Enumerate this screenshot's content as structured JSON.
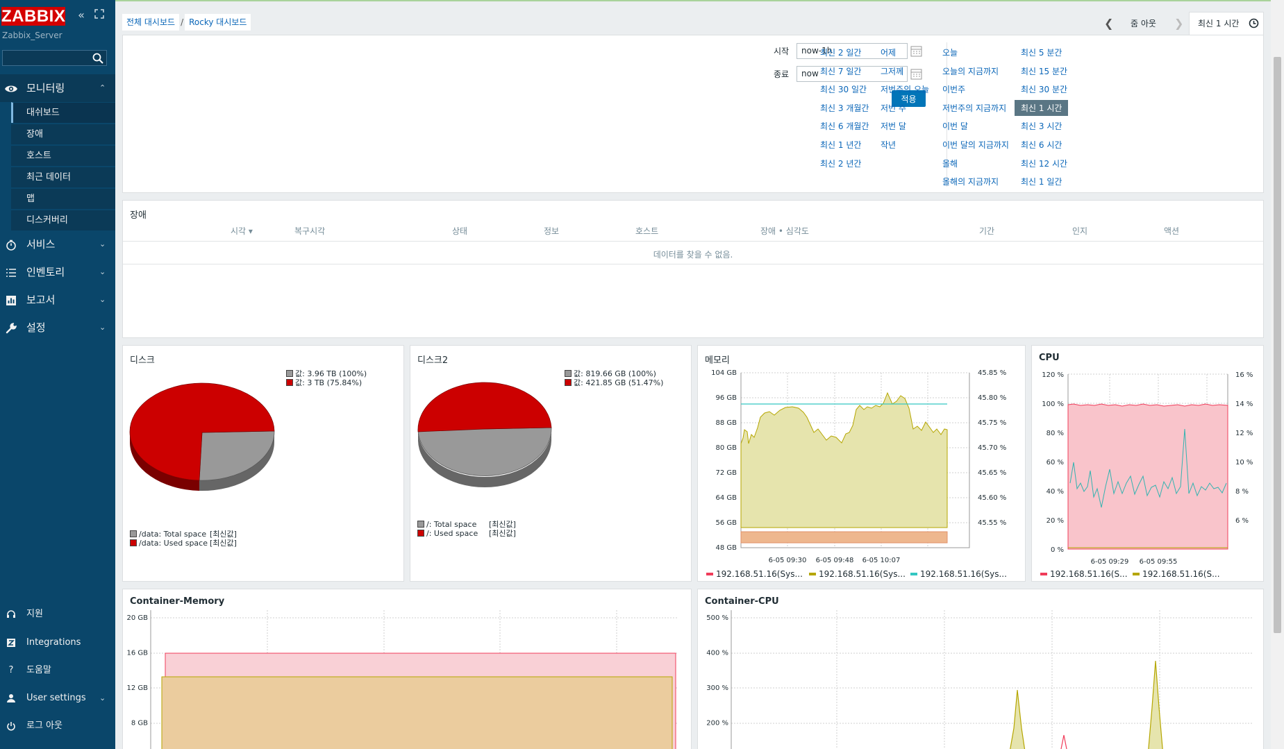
{
  "sidebar": {
    "logo": "ZABBIX",
    "server": "Zabbix_Server",
    "search_value": "",
    "monitoring": {
      "label": "모니터링",
      "items": [
        "대쉬보드",
        "장애",
        "호스트",
        "최근 데이터",
        "맵",
        "디스커버리"
      ]
    },
    "sections": [
      {
        "label": "서비스",
        "icon": "stopwatch-icon"
      },
      {
        "label": "인벤토리",
        "icon": "list-icon"
      },
      {
        "label": "보고서",
        "icon": "bar-chart-icon"
      },
      {
        "label": "설정",
        "icon": "wrench-icon"
      }
    ],
    "bottom": [
      {
        "label": "지원",
        "icon": "headset-icon"
      },
      {
        "label": "Integrations",
        "icon": "integrations-icon"
      },
      {
        "label": "도움말",
        "icon": "help-icon"
      },
      {
        "label": "User settings",
        "icon": "user-icon"
      },
      {
        "label": "로그 아웃",
        "icon": "power-icon"
      }
    ]
  },
  "header": {
    "breadcrumb": [
      "전체 대시보드",
      "Rocky 대시보드"
    ],
    "zoom_out": "줌 아웃",
    "time_tab": "최신 1 시간"
  },
  "filter": {
    "from_label": "시작",
    "from_value": "now-1h",
    "to_label": "종료",
    "to_value": "now",
    "apply": "적용",
    "columns": [
      [
        "최신 2 일간",
        "최신 7 일간",
        "최신 30 일간",
        "최신 3 개월간",
        "최신 6 개월간",
        "최신 1 년간",
        "최신 2 년간"
      ],
      [
        "어제",
        "그저께",
        "저번주의 오늘",
        "저번 주",
        "저번 달",
        "작년"
      ],
      [
        "오늘",
        "오늘의 지금까지",
        "이번주",
        "저번주의 지금까지",
        "이번 달",
        "이번 달의 지금까지",
        "올해",
        "올해의 지금까지"
      ],
      [
        "최신 5 분간",
        "최신 15 분간",
        "최신 30 분간",
        "최신 1 시간",
        "최신 3 시간",
        "최신 6 시간",
        "최신 12 시간",
        "최신 1 일간"
      ]
    ],
    "selected": "최신 1 시간"
  },
  "problems": {
    "title": "장애",
    "columns": [
      "시각 ▾",
      "복구시각",
      "상태",
      "정보",
      "호스트",
      "장애 • 심각도",
      "기간",
      "인지",
      "액션"
    ],
    "empty": "데이터를 찾을 수 없음."
  },
  "disk1": {
    "title": "디스크",
    "legend_top": [
      "값: 3.96 TB (100%)",
      "값: 3 TB (75.84%)"
    ],
    "legend_bottom": [
      {
        "name": "/data: Total space",
        "func": "[최신값]"
      },
      {
        "name": "/data: Used space",
        "func": "[최신값]"
      }
    ],
    "colors": [
      "#999999",
      "#cc0000"
    ],
    "used_fraction": 0.7584
  },
  "disk2": {
    "title": "디스크2",
    "legend_top": [
      "값: 819.66 GB (100%)",
      "값: 421.85 GB (51.47%)"
    ],
    "legend_bottom": [
      {
        "name": "/: Total space",
        "func": "[최신값]"
      },
      {
        "name": "/: Used space",
        "func": "[최신값]"
      }
    ],
    "colors": [
      "#999999",
      "#cc0000"
    ],
    "used_fraction": 0.5147
  },
  "memory": {
    "title": "메모리",
    "y_left": [
      "104 GB",
      "96 GB",
      "88 GB",
      "80 GB",
      "72 GB",
      "64 GB",
      "56 GB",
      "48 GB"
    ],
    "y_right": [
      "45.85 %",
      "45.80 %",
      "45.75 %",
      "45.70 %",
      "45.65 %",
      "45.60 %",
      "45.55 %"
    ],
    "x_labels": [
      "6-05 09:30",
      "6-05 09:48",
      "6-05 10:07"
    ],
    "legend": [
      {
        "name": "192.168.51.16(Sys...",
        "color": "#f03c5a"
      },
      {
        "name": "192.168.51.16(Sys...",
        "color": "#b5a600"
      },
      {
        "name": "192.168.51.16(Sys...",
        "color": "#33c7c2"
      }
    ]
  },
  "cpu": {
    "title": "CPU",
    "y_left": [
      "120 %",
      "100 %",
      "80 %",
      "60 %",
      "40 %",
      "20 %",
      "0 %"
    ],
    "y_right": [
      "16 %",
      "14 %",
      "12 %",
      "10 %",
      "8 %",
      "6 %"
    ],
    "x_labels": [
      "6-05 09:29",
      "6-05 09:55"
    ],
    "legend": [
      {
        "name": "192.168.51.16(S...",
        "color": "#f03c5a"
      },
      {
        "name": "192.168.51.16(S...",
        "color": "#b5a600"
      }
    ]
  },
  "cmem": {
    "title": "Container-Memory",
    "y_left": [
      "20 GB",
      "16 GB",
      "12 GB",
      "8 GB"
    ]
  },
  "ccpu": {
    "title": "Container-CPU",
    "y_left": [
      "500 %",
      "400 %",
      "300 %",
      "200 %"
    ]
  }
}
